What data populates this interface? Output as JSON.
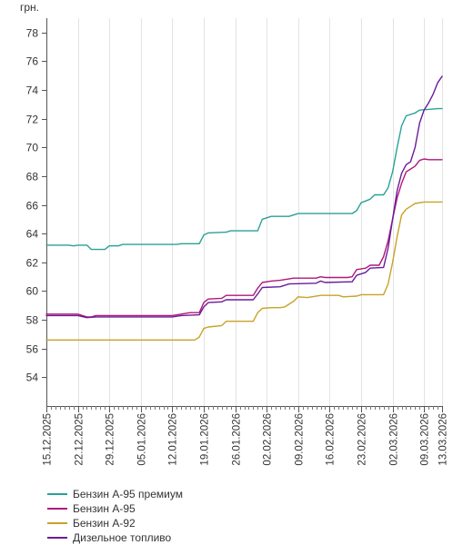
{
  "chart_data": {
    "type": "line",
    "unit_label": "грн.",
    "ylim": [
      52,
      79
    ],
    "yticks": [
      54,
      56,
      58,
      60,
      62,
      64,
      66,
      68,
      70,
      72,
      74,
      76,
      78
    ],
    "grid": "vertical",
    "x_start": "2025-12-15",
    "x_end": "2026-03-13",
    "xtick_labels": [
      "15.12.2025",
      "22.12.2025",
      "29.12.2025",
      "05.01.2026",
      "12.01.2026",
      "19.01.2026",
      "26.01.2026",
      "02.02.2026",
      "09.02.2026",
      "16.02.2026",
      "23.02.2026",
      "02.03.2026",
      "09.03.2026",
      "13.03.2026"
    ],
    "xtick_dates": [
      "2025-12-15",
      "2025-12-22",
      "2025-12-29",
      "2026-01-05",
      "2026-01-12",
      "2026-01-19",
      "2026-01-26",
      "2026-02-02",
      "2026-02-09",
      "2026-02-16",
      "2026-02-23",
      "2026-03-02",
      "2026-03-09",
      "2026-03-13"
    ],
    "legend_position": "bottom-left",
    "series": [
      {
        "name": "Бензин А-95 премиум",
        "color": "#2aa198",
        "points": [
          [
            "2025-12-15",
            63.2
          ],
          [
            "2025-12-20",
            63.2
          ],
          [
            "2025-12-21",
            63.15
          ],
          [
            "2025-12-22",
            63.2
          ],
          [
            "2025-12-24",
            63.2
          ],
          [
            "2025-12-25",
            62.9
          ],
          [
            "2025-12-28",
            62.9
          ],
          [
            "2025-12-29",
            63.15
          ],
          [
            "2025-12-31",
            63.15
          ],
          [
            "2026-01-01",
            63.25
          ],
          [
            "2026-01-13",
            63.25
          ],
          [
            "2026-01-14",
            63.3
          ],
          [
            "2026-01-18",
            63.3
          ],
          [
            "2026-01-19",
            63.9
          ],
          [
            "2026-01-20",
            64.05
          ],
          [
            "2026-01-24",
            64.1
          ],
          [
            "2026-01-25",
            64.2
          ],
          [
            "2026-01-31",
            64.2
          ],
          [
            "2026-02-01",
            65.0
          ],
          [
            "2026-02-03",
            65.2
          ],
          [
            "2026-02-07",
            65.2
          ],
          [
            "2026-02-09",
            65.4
          ],
          [
            "2026-02-21",
            65.4
          ],
          [
            "2026-02-22",
            65.6
          ],
          [
            "2026-02-23",
            66.15
          ],
          [
            "2026-02-25",
            66.4
          ],
          [
            "2026-02-26",
            66.7
          ],
          [
            "2026-02-28",
            66.7
          ],
          [
            "2026-03-01",
            67.2
          ],
          [
            "2026-03-02",
            68.3
          ],
          [
            "2026-03-03",
            70.0
          ],
          [
            "2026-03-04",
            71.5
          ],
          [
            "2026-03-05",
            72.2
          ],
          [
            "2026-03-07",
            72.4
          ],
          [
            "2026-03-08",
            72.6
          ],
          [
            "2026-03-10",
            72.65
          ],
          [
            "2026-03-12",
            72.7
          ],
          [
            "2026-03-13",
            72.7
          ]
        ]
      },
      {
        "name": "Бензин А-95",
        "color": "#b0177a",
        "points": [
          [
            "2025-12-15",
            58.4
          ],
          [
            "2025-12-22",
            58.4
          ],
          [
            "2025-12-24",
            58.2
          ],
          [
            "2025-12-25",
            58.2
          ],
          [
            "2025-12-26",
            58.3
          ],
          [
            "2026-01-12",
            58.3
          ],
          [
            "2026-01-14",
            58.4
          ],
          [
            "2026-01-16",
            58.5
          ],
          [
            "2026-01-18",
            58.5
          ],
          [
            "2026-01-19",
            59.2
          ],
          [
            "2026-01-20",
            59.45
          ],
          [
            "2026-01-23",
            59.5
          ],
          [
            "2026-01-24",
            59.7
          ],
          [
            "2026-01-30",
            59.7
          ],
          [
            "2026-01-31",
            60.2
          ],
          [
            "2026-02-01",
            60.6
          ],
          [
            "2026-02-03",
            60.7
          ],
          [
            "2026-02-05",
            60.75
          ],
          [
            "2026-02-08",
            60.9
          ],
          [
            "2026-02-13",
            60.9
          ],
          [
            "2026-02-14",
            61.0
          ],
          [
            "2026-02-15",
            60.95
          ],
          [
            "2026-02-20",
            60.95
          ],
          [
            "2026-02-21",
            61.0
          ],
          [
            "2026-02-22",
            61.5
          ],
          [
            "2026-02-24",
            61.6
          ],
          [
            "2026-02-25",
            61.8
          ],
          [
            "2026-02-27",
            61.8
          ],
          [
            "2026-02-28",
            62.4
          ],
          [
            "2026-03-01",
            63.5
          ],
          [
            "2026-03-02",
            65.0
          ],
          [
            "2026-03-03",
            66.5
          ],
          [
            "2026-03-04",
            67.5
          ],
          [
            "2026-03-05",
            68.3
          ],
          [
            "2026-03-06",
            68.5
          ],
          [
            "2026-03-07",
            68.7
          ],
          [
            "2026-03-08",
            69.1
          ],
          [
            "2026-03-09",
            69.2
          ],
          [
            "2026-03-10",
            69.15
          ],
          [
            "2026-03-13",
            69.15
          ]
        ]
      },
      {
        "name": "Бензин А-92",
        "color": "#c9a227",
        "points": [
          [
            "2025-12-15",
            56.6
          ],
          [
            "2026-01-17",
            56.6
          ],
          [
            "2026-01-18",
            56.8
          ],
          [
            "2026-01-19",
            57.4
          ],
          [
            "2026-01-20",
            57.5
          ],
          [
            "2026-01-23",
            57.6
          ],
          [
            "2026-01-24",
            57.9
          ],
          [
            "2026-01-30",
            57.9
          ],
          [
            "2026-01-31",
            58.5
          ],
          [
            "2026-02-01",
            58.8
          ],
          [
            "2026-02-03",
            58.85
          ],
          [
            "2026-02-05",
            58.85
          ],
          [
            "2026-02-06",
            58.9
          ],
          [
            "2026-02-08",
            59.3
          ],
          [
            "2026-02-09",
            59.6
          ],
          [
            "2026-02-11",
            59.55
          ],
          [
            "2026-02-12",
            59.6
          ],
          [
            "2026-02-14",
            59.7
          ],
          [
            "2026-02-18",
            59.7
          ],
          [
            "2026-02-19",
            59.6
          ],
          [
            "2026-02-22",
            59.65
          ],
          [
            "2026-02-23",
            59.75
          ],
          [
            "2026-02-28",
            59.75
          ],
          [
            "2026-03-01",
            60.5
          ],
          [
            "2026-03-02",
            62.0
          ],
          [
            "2026-03-03",
            63.8
          ],
          [
            "2026-03-04",
            65.3
          ],
          [
            "2026-03-05",
            65.7
          ],
          [
            "2026-03-06",
            65.9
          ],
          [
            "2026-03-07",
            66.1
          ],
          [
            "2026-03-09",
            66.2
          ],
          [
            "2026-03-13",
            66.2
          ]
        ]
      },
      {
        "name": "Дизельное топливо",
        "color": "#6a1b9a",
        "points": [
          [
            "2025-12-15",
            58.3
          ],
          [
            "2025-12-22",
            58.3
          ],
          [
            "2025-12-24",
            58.15
          ],
          [
            "2025-12-26",
            58.2
          ],
          [
            "2026-01-12",
            58.2
          ],
          [
            "2026-01-14",
            58.3
          ],
          [
            "2026-01-18",
            58.35
          ],
          [
            "2026-01-19",
            58.9
          ],
          [
            "2026-01-20",
            59.2
          ],
          [
            "2026-01-23",
            59.25
          ],
          [
            "2026-01-24",
            59.4
          ],
          [
            "2026-01-30",
            59.4
          ],
          [
            "2026-01-31",
            59.8
          ],
          [
            "2026-02-01",
            60.25
          ],
          [
            "2026-02-05",
            60.3
          ],
          [
            "2026-02-07",
            60.5
          ],
          [
            "2026-02-13",
            60.55
          ],
          [
            "2026-02-14",
            60.7
          ],
          [
            "2026-02-15",
            60.6
          ],
          [
            "2026-02-21",
            60.65
          ],
          [
            "2026-02-22",
            61.1
          ],
          [
            "2026-02-24",
            61.3
          ],
          [
            "2026-02-25",
            61.6
          ],
          [
            "2026-02-28",
            61.65
          ],
          [
            "2026-03-01",
            63.0
          ],
          [
            "2026-03-02",
            65.0
          ],
          [
            "2026-03-03",
            67.0
          ],
          [
            "2026-03-04",
            68.2
          ],
          [
            "2026-03-05",
            68.8
          ],
          [
            "2026-03-06",
            69.0
          ],
          [
            "2026-03-07",
            70.0
          ],
          [
            "2026-03-08",
            71.7
          ],
          [
            "2026-03-09",
            72.6
          ],
          [
            "2026-03-10",
            73.1
          ],
          [
            "2026-03-11",
            73.7
          ],
          [
            "2026-03-12",
            74.5
          ],
          [
            "2026-03-13",
            74.95
          ]
        ]
      }
    ]
  }
}
